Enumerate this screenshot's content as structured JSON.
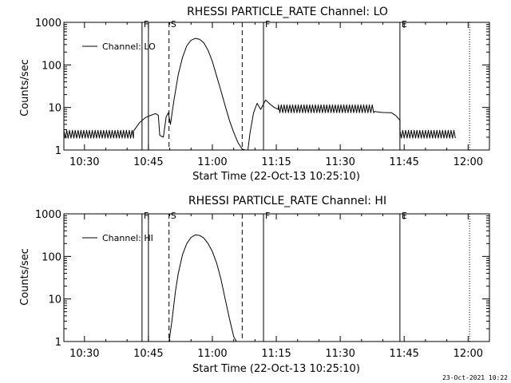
{
  "footer_timestamp": "23-Oct-2021 10:22",
  "chart_data": [
    {
      "type": "line",
      "title": "RHESSI PARTICLE_RATE Channel: LO",
      "xlabel": "Start Time (22-Oct-13 10:25:10)",
      "ylabel": "Counts/sec",
      "yscale": "log",
      "ylim": [
        1,
        1000
      ],
      "xlim": [
        "10:25:10",
        "12:05:00"
      ],
      "x_ticks": [
        "10:30",
        "10:45",
        "11:00",
        "11:15",
        "11:30",
        "11:45",
        "12:00"
      ],
      "y_ticks": [
        "1",
        "10",
        "100",
        "1000"
      ],
      "legend": {
        "position": "top-left",
        "entries": [
          "Channel: LO"
        ]
      },
      "markers": [
        {
          "label": "F",
          "time": "10:43:30",
          "style": "solid"
        },
        {
          "label": "",
          "time": "10:45:00",
          "style": "solid"
        },
        {
          "label": "S",
          "time": "10:49:50",
          "style": "dashed"
        },
        {
          "label": "",
          "time": "11:07:00",
          "style": "dashed"
        },
        {
          "label": "F",
          "time": "11:12:00",
          "style": "solid"
        },
        {
          "label": "E",
          "time": "11:44:00",
          "style": "solid"
        },
        {
          "label": "",
          "time": "12:00:20",
          "style": "dotted"
        }
      ],
      "series": [
        {
          "name": "Channel: LO",
          "segments": [
            {
              "mode": "noise",
              "from": "10:25:10",
              "to": "10:41:30",
              "low": 1.9,
              "high": 2.9
            },
            {
              "mode": "line",
              "x": [
                "10:41:30",
                "10:43:00",
                "10:44:20",
                "10:45:30",
                "10:46:40",
                "10:47:20",
                "10:47:40",
                "10:48:30",
                "10:49:10",
                "10:49:40",
                "10:50:10",
                "10:51:00",
                "10:52:00",
                "10:53:00",
                "10:54:00",
                "10:55:00",
                "10:56:00",
                "10:57:00",
                "10:58:00",
                "10:59:00",
                "11:00:00",
                "11:01:00",
                "11:02:00",
                "11:03:00",
                "11:04:00",
                "11:05:00",
                "11:06:00",
                "11:07:00",
                "11:07:45",
                "11:08:20",
                "11:08:50",
                "11:09:40",
                "11:10:30",
                "11:11:20",
                "11:12:30",
                "11:13:30",
                "11:14:30",
                "11:15:30"
              ],
              "y": [
                2.8,
                4.5,
                5.8,
                6.5,
                7.2,
                6.5,
                2.2,
                2.0,
                6.0,
                7.5,
                4.0,
                15,
                60,
                150,
                280,
                380,
                420,
                400,
                330,
                220,
                120,
                55,
                25,
                11,
                5,
                2.6,
                1.5,
                1.05,
                1.0,
                1.0,
                2.5,
                7.5,
                12.5,
                9.0,
                15,
                12,
                10,
                9
              ]
            },
            {
              "mode": "noise",
              "from": "11:15:30",
              "to": "11:38:00",
              "low": 7.5,
              "high": 11.5
            },
            {
              "mode": "line",
              "x": [
                "11:38:00",
                "11:40:00",
                "11:42:00",
                "11:43:00",
                "11:44:00"
              ],
              "y": [
                8.0,
                7.6,
                7.5,
                6.5,
                5.0
              ]
            },
            {
              "mode": "noise",
              "from": "11:44:00",
              "to": "11:57:00",
              "low": 1.9,
              "high": 2.9
            }
          ]
        }
      ]
    },
    {
      "type": "line",
      "title": "RHESSI PARTICLE_RATE Channel: HI",
      "xlabel": "Start Time (22-Oct-13 10:25:10)",
      "ylabel": "Counts/sec",
      "yscale": "log",
      "ylim": [
        1,
        1000
      ],
      "xlim": [
        "10:25:10",
        "12:05:00"
      ],
      "x_ticks": [
        "10:30",
        "10:45",
        "11:00",
        "11:15",
        "11:30",
        "11:45",
        "12:00"
      ],
      "y_ticks": [
        "1",
        "10",
        "100",
        "1000"
      ],
      "legend": {
        "position": "top-left",
        "entries": [
          "Channel: HI"
        ]
      },
      "markers": [
        {
          "label": "F",
          "time": "10:43:30",
          "style": "solid"
        },
        {
          "label": "",
          "time": "10:45:00",
          "style": "solid"
        },
        {
          "label": "S",
          "time": "10:49:50",
          "style": "dashed"
        },
        {
          "label": "",
          "time": "11:07:00",
          "style": "dashed"
        },
        {
          "label": "F",
          "time": "11:12:00",
          "style": "solid"
        },
        {
          "label": "E",
          "time": "11:44:00",
          "style": "solid"
        },
        {
          "label": "",
          "time": "12:00:20",
          "style": "dotted"
        }
      ],
      "series": [
        {
          "name": "Channel: HI",
          "segments": [
            {
              "mode": "line",
              "x": [
                "10:49:50",
                "10:50:30",
                "10:51:20",
                "10:52:00",
                "10:53:00",
                "10:54:00",
                "10:55:00",
                "10:56:00",
                "10:57:00",
                "10:58:00",
                "10:59:00",
                "11:00:00",
                "11:01:00",
                "11:02:00",
                "11:03:00",
                "11:04:00",
                "11:05:00",
                "11:05:40"
              ],
              "y": [
                1.0,
                3.0,
                15,
                40,
                110,
                200,
                280,
                320,
                310,
                270,
                200,
                130,
                70,
                30,
                10,
                3.5,
                1.3,
                1.0
              ]
            }
          ]
        }
      ]
    }
  ]
}
